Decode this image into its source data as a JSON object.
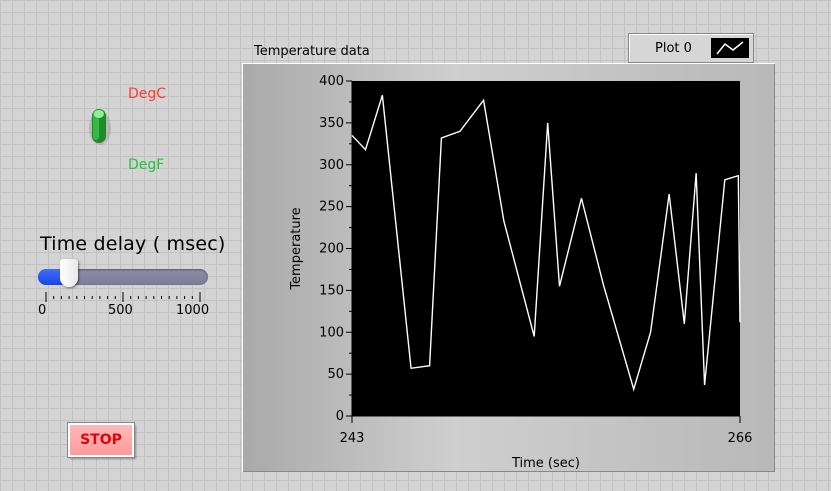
{
  "toggle": {
    "on_label": "DegC",
    "off_label": "DegF",
    "on_color": "#ff3b2f",
    "off_color": "#22c33a",
    "state": "DegC"
  },
  "slider": {
    "label": "Time delay ( msec)",
    "min": 0,
    "max": 1000,
    "value": 150,
    "tick_labels": [
      "0",
      "500",
      "1000"
    ]
  },
  "stop_button": {
    "label": "STOP"
  },
  "graph": {
    "title": "Temperature data",
    "legend_label": "Plot 0"
  },
  "chart_data": {
    "type": "line",
    "xlabel": "Time (sec)",
    "ylabel": "Temperature",
    "xlim": [
      243,
      266
    ],
    "ylim": [
      0,
      400
    ],
    "x_tick_labels": [
      "243",
      "266"
    ],
    "y_tick_labels": [
      "0",
      "50",
      "100",
      "150",
      "200",
      "250",
      "300",
      "350",
      "400"
    ],
    "grid": false,
    "series": [
      {
        "name": "Plot 0",
        "color": "#ffffff",
        "x": [
          243,
          243.8,
          244.8,
          246.5,
          247.6,
          248.3,
          249.4,
          250.8,
          252.0,
          253.8,
          254.6,
          255.3,
          256.6,
          257.9,
          259.7,
          260.7,
          261.8,
          262.7,
          263.4,
          263.9,
          265.1,
          265.9,
          266
        ],
        "y": [
          335,
          318,
          383,
          57,
          60,
          332,
          340,
          377,
          233,
          95,
          350,
          155,
          260,
          157,
          32,
          100,
          265,
          110,
          290,
          37,
          282,
          287,
          112
        ]
      }
    ],
    "background": "#000000"
  }
}
